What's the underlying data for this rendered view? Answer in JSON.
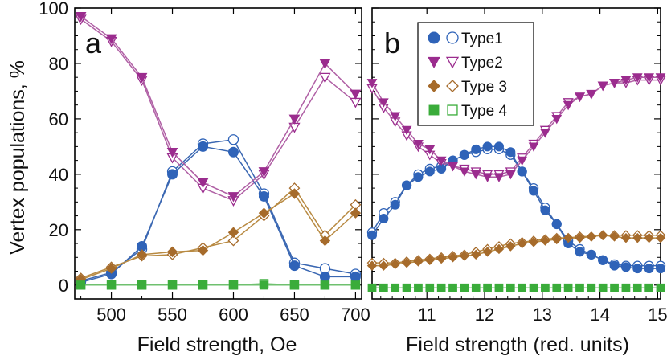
{
  "figure": {
    "ylabel": "Vertex populations, %"
  },
  "chart_data": [
    {
      "type": "line",
      "panel": "a",
      "xlabel": "Field strength, Oe",
      "ylabel": "Vertex populations, %",
      "xlim": [
        470,
        705
      ],
      "ylim": [
        -5,
        100
      ],
      "xticks": [
        500,
        550,
        600,
        650,
        700
      ],
      "yticks": [
        0,
        20,
        40,
        60,
        80,
        100
      ],
      "x": [
        475,
        500,
        525,
        550,
        575,
        600,
        625,
        650,
        675,
        700
      ],
      "series": [
        {
          "name": "Type1",
          "style": "filled",
          "values": [
            1,
            4,
            14,
            40,
            50,
            48,
            32,
            7,
            3,
            3
          ]
        },
        {
          "name": "Type1",
          "style": "open",
          "values": [
            1.5,
            4.5,
            13,
            41,
            51,
            52.5,
            33,
            8,
            6,
            4
          ]
        },
        {
          "name": "Type2",
          "style": "filled",
          "values": [
            97,
            89,
            75,
            48,
            37,
            32,
            41,
            60,
            80,
            69
          ]
        },
        {
          "name": "Type2",
          "style": "open",
          "values": [
            96,
            88,
            74,
            46,
            35,
            30.5,
            40,
            57,
            75,
            66
          ]
        },
        {
          "name": "Type 3",
          "style": "filled",
          "values": [
            2,
            6,
            11,
            12,
            12.5,
            19,
            26,
            33,
            16,
            26
          ]
        },
        {
          "name": "Type 3",
          "style": "open",
          "values": [
            2.5,
            6.5,
            10.5,
            11,
            13.5,
            16,
            25,
            35,
            18,
            29
          ]
        },
        {
          "name": "Type 4",
          "style": "filled",
          "values": [
            0,
            0,
            0,
            0,
            0,
            0,
            0,
            0,
            0,
            0
          ]
        },
        {
          "name": "Type 4",
          "style": "open",
          "values": [
            0,
            0,
            0,
            0,
            0,
            0,
            0.5,
            0,
            0,
            0
          ]
        }
      ]
    },
    {
      "type": "line",
      "panel": "b",
      "xlabel": "Field strength (red. units)",
      "xlim": [
        10.05,
        15.05
      ],
      "ylim": [
        -5,
        100
      ],
      "xticks": [
        11,
        12,
        13,
        14,
        15
      ],
      "yticks": [
        0,
        20,
        40,
        60,
        80,
        100
      ],
      "x": [
        10.05,
        10.25,
        10.45,
        10.65,
        10.85,
        11.05,
        11.25,
        11.45,
        11.65,
        11.85,
        12.05,
        12.25,
        12.45,
        12.65,
        12.85,
        13.05,
        13.25,
        13.45,
        13.65,
        13.85,
        14.05,
        14.25,
        14.45,
        14.65,
        14.85,
        15.05
      ],
      "series": [
        {
          "name": "Type1",
          "style": "filled",
          "values": [
            18,
            24,
            29,
            36,
            39,
            41,
            42,
            45,
            47,
            49,
            50,
            50,
            48,
            41,
            34,
            27,
            22,
            15,
            12,
            11,
            9,
            7,
            6.5,
            6,
            6,
            6
          ]
        },
        {
          "name": "Type1",
          "style": "open",
          "values": [
            19,
            26,
            30,
            36,
            40,
            42,
            43,
            45,
            47,
            48,
            49,
            49,
            47,
            41,
            35,
            28,
            22,
            16,
            13,
            11,
            9,
            7.5,
            7,
            7,
            7,
            7
          ]
        },
        {
          "name": "Type2",
          "style": "filled",
          "values": [
            73,
            66,
            61,
            56,
            51,
            49,
            45,
            43,
            41,
            40,
            39,
            39,
            40,
            45,
            50,
            55,
            60,
            65,
            68,
            69,
            72,
            73,
            74,
            75,
            75,
            75
          ]
        },
        {
          "name": "Type2",
          "style": "open",
          "values": [
            71,
            64,
            59,
            54,
            50,
            47,
            44,
            43,
            42,
            41,
            40,
            40,
            41,
            46,
            51,
            56,
            61,
            66,
            68,
            69,
            72,
            73,
            73,
            74,
            74,
            74
          ]
        },
        {
          "name": "Type 3",
          "style": "filled",
          "values": [
            7,
            7,
            7.5,
            8,
            8.5,
            9,
            9.5,
            10,
            10.5,
            11,
            12,
            13,
            14,
            15,
            15.5,
            16,
            16.5,
            17,
            17,
            17.5,
            18,
            17.5,
            17,
            17,
            17,
            17
          ]
        },
        {
          "name": "Type 3",
          "style": "open",
          "values": [
            8,
            8,
            8,
            8.5,
            9,
            9.5,
            10,
            10.5,
            11,
            12,
            13,
            14,
            15,
            15.5,
            16,
            16.5,
            17,
            17,
            17.5,
            17.5,
            18,
            18,
            18,
            18,
            18,
            18
          ]
        },
        {
          "name": "Type 4",
          "style": "filled",
          "values": [
            -1,
            -1,
            -1,
            -1,
            -1,
            -1,
            -1,
            -1,
            -1,
            -1,
            -1,
            -1,
            -1,
            -1,
            -1,
            -1,
            -1,
            -1,
            -1,
            -1,
            -1,
            -1,
            -1,
            -1,
            -1,
            -1
          ]
        },
        {
          "name": "Type 4",
          "style": "open",
          "values": [
            -1,
            -1,
            -1,
            -1,
            -1,
            -1,
            -1,
            -1,
            -1,
            -1,
            -1,
            -1,
            -1,
            -1,
            -1,
            -1,
            -1,
            -1,
            -1,
            -1,
            -1,
            -1,
            -1,
            -1,
            -1,
            -1
          ]
        }
      ]
    }
  ],
  "legend": [
    {
      "label": "Type1",
      "marker": "circle",
      "color": "#2f63b8"
    },
    {
      "label": "Type2",
      "marker": "triangle-down",
      "color": "#9b2c8e"
    },
    {
      "label": "Type 3",
      "marker": "diamond",
      "color": "#a66b2b"
    },
    {
      "label": "Type 4",
      "marker": "square",
      "color": "#3aac3a"
    }
  ],
  "colors": {
    "Type1": {
      "line": "#3a67b2",
      "fill": "#2f63b8"
    },
    "Type2": {
      "line": "#b060a5",
      "fill": "#9b2c8e"
    },
    "Type 3": {
      "line": "#b88a42",
      "fill": "#a66b2b"
    },
    "Type 4": {
      "line": "#6fc06f",
      "fill": "#3aac3a"
    }
  }
}
